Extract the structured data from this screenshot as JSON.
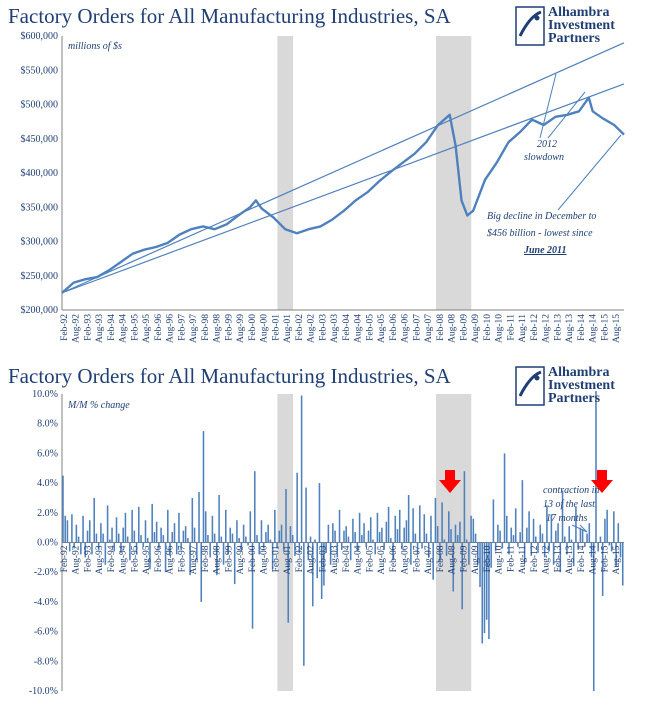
{
  "colors": {
    "series": "#4f81bd",
    "title": "#1f3f74",
    "recession": "#d9d9d9",
    "arrow": "#ff0000"
  },
  "logo": {
    "line1": "Alhambra",
    "line2": "Investment",
    "line3": "Partners"
  },
  "chart_data": [
    {
      "type": "line",
      "title": "Factory Orders for All Manufacturing Industries, SA",
      "ylabel": "millions of $s",
      "ylim": [
        200000,
        600000
      ],
      "yticks": [
        "$200,000",
        "$250,000",
        "$300,000",
        "$350,000",
        "$400,000",
        "$450,000",
        "$500,000",
        "$550,000",
        "$600,000"
      ],
      "ytick_values": [
        200000,
        250000,
        300000,
        350000,
        400000,
        450000,
        500000,
        550000,
        600000
      ],
      "xticks": [
        "Feb-92",
        "Aug-92",
        "Feb-93",
        "Aug-93",
        "Feb-94",
        "Aug-94",
        "Feb-95",
        "Aug-95",
        "Feb-96",
        "Aug-96",
        "Feb-97",
        "Aug-97",
        "Feb-98",
        "Aug-98",
        "Feb-99",
        "Aug-99",
        "Feb-00",
        "Aug-00",
        "Feb-01",
        "Aug-01",
        "Feb-02",
        "Aug-02",
        "Feb-03",
        "Aug-03",
        "Feb-04",
        "Aug-04",
        "Feb-05",
        "Aug-05",
        "Feb-06",
        "Aug-06",
        "Feb-07",
        "Aug-07",
        "Feb-08",
        "Aug-08",
        "Feb-09",
        "Aug-09",
        "Feb-10",
        "Aug-10",
        "Feb-11",
        "Aug-11",
        "Feb-12",
        "Aug-12",
        "Feb-13",
        "Aug-13",
        "Feb-14",
        "Aug-14",
        "Feb-15",
        "Aug-15"
      ],
      "recessions": [
        [
          "Mar-01",
          "Nov-01"
        ],
        [
          "Dec-07",
          "Jun-09"
        ]
      ],
      "series": [
        {
          "x": [
            "Jan-92",
            "Jul-92",
            "Jan-93",
            "Jul-93",
            "Jan-94",
            "Jul-94",
            "Jan-95",
            "Jul-95",
            "Jan-96",
            "Jul-96",
            "Jan-97",
            "Jul-97",
            "Jan-98",
            "Jul-98",
            "Jan-99",
            "Jul-99",
            "Jan-00",
            "Apr-00",
            "Jul-00",
            "Jan-01",
            "Jul-01",
            "Jan-02",
            "Jul-02",
            "Jan-03",
            "Jul-03",
            "Jan-04",
            "Jul-04",
            "Jan-05",
            "Jul-05",
            "Jan-06",
            "Jul-06",
            "Jan-07",
            "Jul-07",
            "Jan-08",
            "Jul-08",
            "Oct-08",
            "Jan-09",
            "Apr-09",
            "Jul-09",
            "Jan-10",
            "Jul-10",
            "Jan-11",
            "Jul-11",
            "Jan-12",
            "Jul-12",
            "Jan-13",
            "Jul-13",
            "Jan-14",
            "Jun-14",
            "Aug-14",
            "Jan-15",
            "Jul-15",
            "Dec-15"
          ],
          "values": [
            225000,
            240000,
            245000,
            248000,
            258000,
            270000,
            282000,
            288000,
            292000,
            298000,
            310000,
            318000,
            322000,
            318000,
            325000,
            338000,
            350000,
            360000,
            348000,
            335000,
            318000,
            312000,
            318000,
            322000,
            332000,
            345000,
            360000,
            372000,
            388000,
            402000,
            415000,
            428000,
            445000,
            470000,
            485000,
            440000,
            360000,
            338000,
            345000,
            390000,
            415000,
            445000,
            460000,
            478000,
            470000,
            482000,
            485000,
            490000,
            510000,
            490000,
            480000,
            470000,
            456000
          ]
        }
      ],
      "trendlines": [
        {
          "from": [
            "Jan-92",
            225000
          ],
          "to": [
            "Dec-15",
            530000
          ]
        }
      ],
      "annotations": [
        "2012 slowdown",
        "Big decline in December to",
        "$456 billion - lowest since",
        "June 2011"
      ]
    },
    {
      "type": "bar",
      "title": "Factory Orders for All Manufacturing Industries, SA",
      "ylabel": "M/M % change",
      "ylim": [
        -10,
        10
      ],
      "yticks": [
        "-10.0%",
        "-8.0%",
        "-6.0%",
        "-4.0%",
        "-2.0%",
        "0.0%",
        "2.0%",
        "4.0%",
        "6.0%",
        "8.0%",
        "10.0%"
      ],
      "ytick_values": [
        -10,
        -8,
        -6,
        -4,
        -2,
        0,
        2,
        4,
        6,
        8,
        10
      ],
      "xticks": [
        "Feb-92",
        "Aug-92",
        "Feb-93",
        "Aug-93",
        "Feb-94",
        "Aug-94",
        "Feb-95",
        "Aug-95",
        "Feb-96",
        "Aug-96",
        "Feb-97",
        "Aug-97",
        "Feb-98",
        "Aug-98",
        "Feb-99",
        "Aug-99",
        "Feb-00",
        "Aug-00",
        "Feb-01",
        "Aug-01",
        "Feb-02",
        "Aug-02",
        "Feb-03",
        "Aug-03",
        "Feb-04",
        "Aug-04",
        "Feb-05",
        "Aug-05",
        "Feb-06",
        "Aug-06",
        "Feb-07",
        "Aug-07",
        "Feb-08",
        "Aug-08",
        "Feb-09",
        "Aug-09",
        "Feb-10",
        "Aug-10",
        "Feb-11",
        "Aug-11",
        "Feb-12",
        "Aug-12",
        "Feb-13",
        "Aug-13",
        "Feb-14",
        "Aug-14",
        "Feb-15",
        "Aug-15"
      ],
      "recessions": [
        [
          "Mar-01",
          "Nov-01"
        ],
        [
          "Dec-07",
          "Jun-09"
        ]
      ],
      "series": [
        {
          "values": [
            4.5,
            1.8,
            1.5,
            -0.6,
            1.9,
            -0.4,
            1.2,
            0.4,
            -0.8,
            1.8,
            -1.0,
            0.8,
            1.5,
            -0.8,
            3.0,
            0.6,
            -0.5,
            1.3,
            0.6,
            -1.5,
            2.5,
            0.2,
            1.0,
            -0.6,
            1.7,
            0.6,
            -0.7,
            1.0,
            2.0,
            0.4,
            -1.2,
            2.2,
            0.8,
            -0.8,
            2.4,
            0.5,
            -0.3,
            1.5,
            0.3,
            -1.8,
            2.6,
            0.7,
            1.4,
            -0.4,
            1.0,
            0.5,
            -2.0,
            2.2,
            -0.9,
            0.7,
            1.3,
            -0.8,
            2.0,
            -0.5,
            0.8,
            1.1,
            0.3,
            -2.2,
            3.0,
            1.0,
            -1.2,
            3.4,
            -4.0,
            7.5,
            2.1,
            0.5,
            -1.0,
            1.8,
            0.6,
            -2.2,
            3.2,
            0.4,
            -1.5,
            2.2,
            -0.8,
            1.0,
            0.6,
            -2.8,
            1.5,
            0.3,
            -0.6,
            1.2,
            0.4,
            -0.2,
            2.1,
            -5.8,
            4.8,
            0.5,
            -0.8,
            1.5,
            -0.4,
            0.7,
            1.2,
            0.2,
            -1.8,
            2.2,
            -0.4,
            0.8,
            1.2,
            -0.6,
            3.6,
            -5.4,
            1.1,
            0.5,
            -0.9,
            4.7,
            -0.7,
            9.9,
            -8.3,
            3.7,
            -1.2,
            0.4,
            -4.3,
            0.2,
            -2.4,
            4.0,
            -3.8,
            -2.9,
            -0.7,
            1.2,
            -1.5,
            1.3,
            0.8,
            -1.0,
            2.2,
            -0.5,
            0.8,
            1.1,
            0.4,
            -1.2,
            1.6,
            0.7,
            -0.6,
            2.0,
            0.5,
            1.3,
            -0.3,
            0.8,
            1.7,
            0.2,
            -0.8,
            2.0,
            0.7,
            1.0,
            -0.5,
            1.4,
            2.4,
            0.3,
            -1.2,
            1.8,
            0.9,
            2.2,
            -0.4,
            1.0,
            1.5,
            3.2,
            -1.5,
            2.3,
            0.6,
            -0.8,
            2.5,
            -0.4,
            1.9,
            0.6,
            -1.0,
            1.8,
            -2.5,
            3.0,
            1.1,
            -1.3,
            2.7,
            0.2,
            -0.9,
            2.1,
            0.9,
            -3.3,
            1.2,
            0.5,
            1.4,
            -4.5,
            4.8,
            0.2,
            -1.5,
            1.8,
            1.6,
            0.6,
            -1.5,
            -3.0,
            -6.8,
            -6.1,
            -5.2,
            -6.5,
            -1.7,
            2.9,
            -0.6,
            1.2,
            0.8,
            -0.4,
            6.0,
            1.8,
            -0.8,
            1.0,
            0.5,
            2.3,
            -0.3,
            0.7,
            4.2,
            -1.4,
            1.0,
            2.1,
            -0.9,
            1.6,
            0.4,
            -0.7,
            1.2,
            0.6,
            -1.0,
            2.5,
            -0.6,
            1.9,
            -1.5,
            0.8,
            1.3,
            -2.0,
            3.5,
            0.4,
            -0.8,
            1.1,
            0.2,
            -1.6,
            2.4,
            -0.5,
            1.0,
            0.9,
            -0.3,
            0.6,
            1.3,
            -1.0,
            -10.0,
            10.2,
            -0.6,
            0.4,
            -3.6,
            1.6,
            2.2,
            -0.2,
            -0.6,
            2.1,
            -1.6,
            1.3,
            -1.0,
            -2.9
          ]
        }
      ],
      "annotations": [
        "contraction in",
        "13 of the last",
        "17 months"
      ]
    }
  ]
}
